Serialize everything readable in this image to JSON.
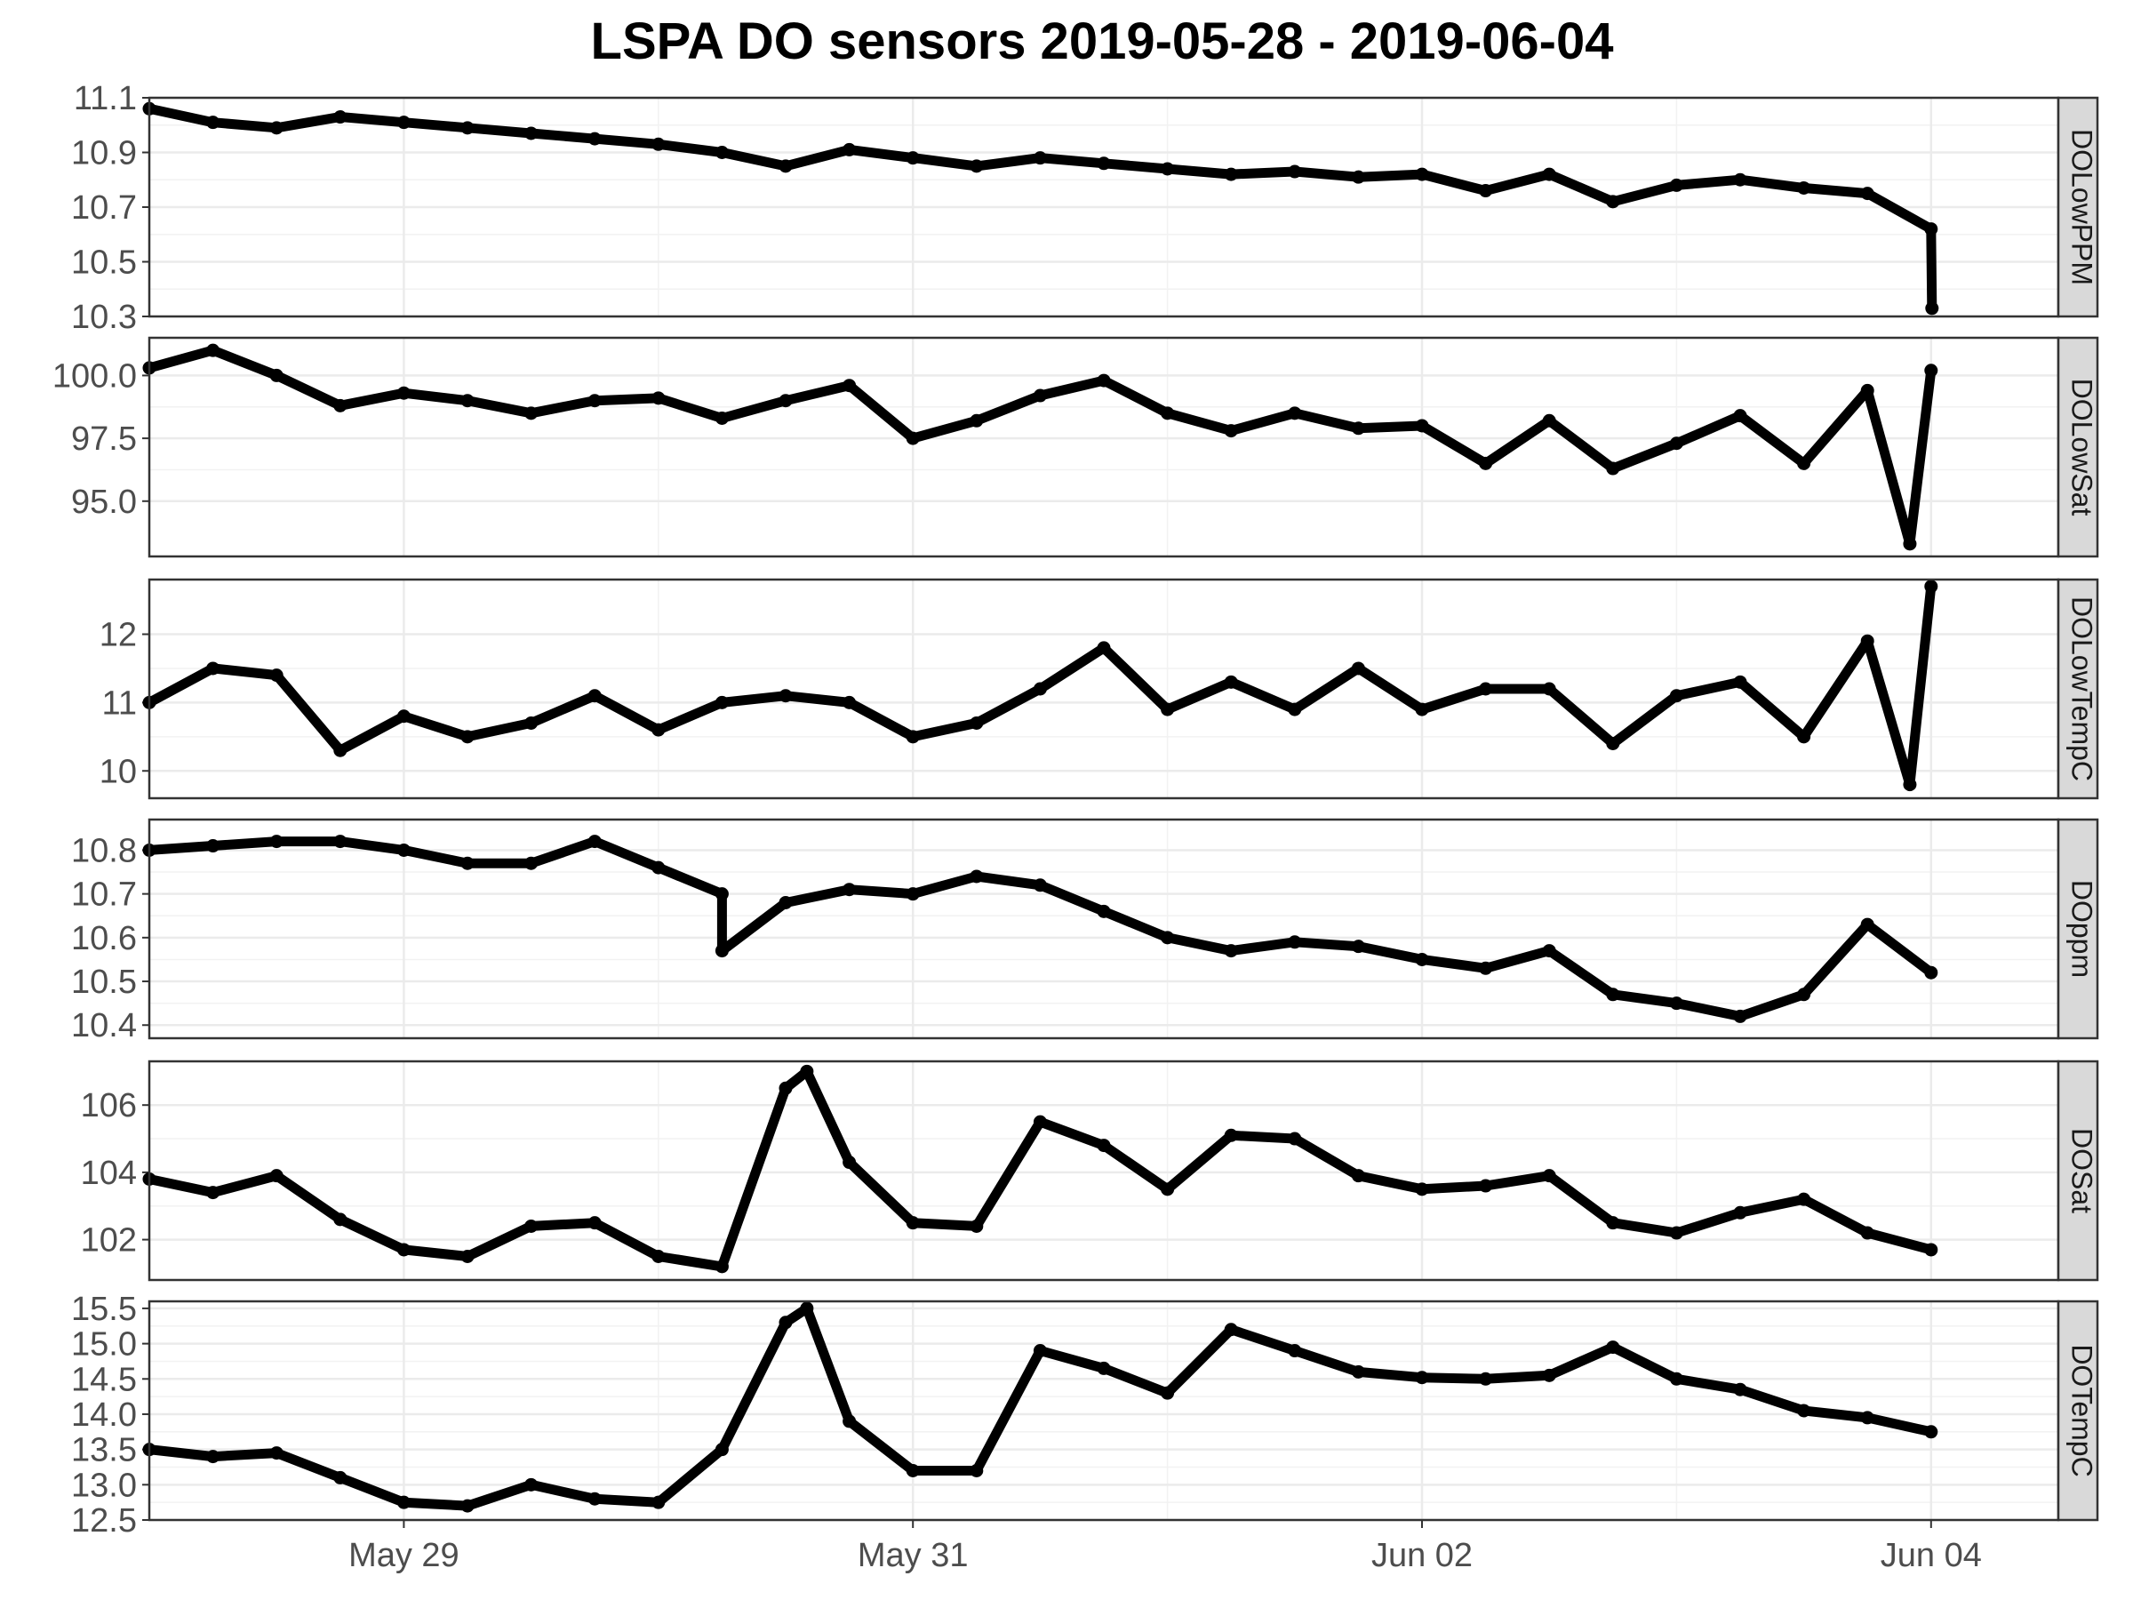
{
  "chart_data": {
    "type": "scatter",
    "title": "LSPA DO sensors 2019-05-28 - 2019-06-04",
    "xlabel": "",
    "ylabel": "",
    "grid": true,
    "point_color": "#000000",
    "strip_color": "#d9d9d9",
    "x_axis": {
      "type": "date",
      "range": [
        "2019-05-28T00:00",
        "2019-06-04T12:00"
      ],
      "ticks": [
        "2019-05-29",
        "2019-05-31",
        "2019-06-02",
        "2019-06-04"
      ],
      "tick_labels": [
        "May 29",
        "May 31",
        "Jun 02",
        "Jun 04"
      ]
    },
    "facets": [
      {
        "name": "DOLowPPM",
        "ylim": [
          10.3,
          11.1
        ],
        "yticks": [
          10.3,
          10.5,
          10.7,
          10.9,
          11.1
        ],
        "ytick_labels": [
          "10.3",
          "10.5",
          "10.7",
          "10.9",
          "11.1"
        ],
        "points": [
          [
            "2019-05-28T00:00",
            11.06
          ],
          [
            "2019-05-28T06:00",
            11.01
          ],
          [
            "2019-05-28T12:00",
            10.99
          ],
          [
            "2019-05-28T18:00",
            11.03
          ],
          [
            "2019-05-29T00:00",
            11.01
          ],
          [
            "2019-05-29T06:00",
            10.99
          ],
          [
            "2019-05-29T12:00",
            10.97
          ],
          [
            "2019-05-29T18:00",
            10.95
          ],
          [
            "2019-05-30T00:00",
            10.93
          ],
          [
            "2019-05-30T06:00",
            10.9
          ],
          [
            "2019-05-30T12:00",
            10.85
          ],
          [
            "2019-05-30T18:00",
            10.91
          ],
          [
            "2019-05-31T00:00",
            10.88
          ],
          [
            "2019-05-31T06:00",
            10.85
          ],
          [
            "2019-05-31T12:00",
            10.88
          ],
          [
            "2019-05-31T18:00",
            10.86
          ],
          [
            "2019-06-01T00:00",
            10.84
          ],
          [
            "2019-06-01T06:00",
            10.82
          ],
          [
            "2019-06-01T12:00",
            10.83
          ],
          [
            "2019-06-01T18:00",
            10.81
          ],
          [
            "2019-06-02T00:00",
            10.82
          ],
          [
            "2019-06-02T06:00",
            10.76
          ],
          [
            "2019-06-02T12:00",
            10.82
          ],
          [
            "2019-06-02T18:00",
            10.72
          ],
          [
            "2019-06-03T00:00",
            10.78
          ],
          [
            "2019-06-03T06:00",
            10.8
          ],
          [
            "2019-06-03T12:00",
            10.77
          ],
          [
            "2019-06-03T18:00",
            10.75
          ],
          [
            "2019-06-04T00:00",
            10.62
          ],
          [
            "2019-06-04T00:05",
            10.33
          ]
        ]
      },
      {
        "name": "DOLowSat",
        "ylim": [
          92.8,
          101.5
        ],
        "yticks": [
          95.0,
          97.5,
          100.0
        ],
        "ytick_labels": [
          "95.0",
          "97.5",
          "100.0"
        ],
        "points": [
          [
            "2019-05-28T00:00",
            100.3
          ],
          [
            "2019-05-28T06:00",
            101.0
          ],
          [
            "2019-05-28T12:00",
            100.0
          ],
          [
            "2019-05-28T18:00",
            98.8
          ],
          [
            "2019-05-29T00:00",
            99.3
          ],
          [
            "2019-05-29T06:00",
            99.0
          ],
          [
            "2019-05-29T12:00",
            98.5
          ],
          [
            "2019-05-29T18:00",
            99.0
          ],
          [
            "2019-05-30T00:00",
            99.1
          ],
          [
            "2019-05-30T06:00",
            98.3
          ],
          [
            "2019-05-30T12:00",
            99.0
          ],
          [
            "2019-05-30T18:00",
            99.6
          ],
          [
            "2019-05-31T00:00",
            97.5
          ],
          [
            "2019-05-31T06:00",
            98.2
          ],
          [
            "2019-05-31T12:00",
            99.2
          ],
          [
            "2019-05-31T18:00",
            99.8
          ],
          [
            "2019-06-01T00:00",
            98.5
          ],
          [
            "2019-06-01T06:00",
            97.8
          ],
          [
            "2019-06-01T12:00",
            98.5
          ],
          [
            "2019-06-01T18:00",
            97.9
          ],
          [
            "2019-06-02T00:00",
            98.0
          ],
          [
            "2019-06-02T06:00",
            96.5
          ],
          [
            "2019-06-02T12:00",
            98.2
          ],
          [
            "2019-06-02T18:00",
            96.3
          ],
          [
            "2019-06-03T00:00",
            97.3
          ],
          [
            "2019-06-03T06:00",
            98.4
          ],
          [
            "2019-06-03T12:00",
            96.5
          ],
          [
            "2019-06-03T18:00",
            99.4
          ],
          [
            "2019-06-04T00:00",
            100.2
          ],
          [
            "2019-06-03T22:00",
            93.3
          ]
        ]
      },
      {
        "name": "DOLowTempC",
        "ylim": [
          9.6,
          12.8
        ],
        "yticks": [
          10,
          11,
          12
        ],
        "ytick_labels": [
          "10",
          "11",
          "12"
        ],
        "points": [
          [
            "2019-05-28T00:00",
            11.0
          ],
          [
            "2019-05-28T06:00",
            11.5
          ],
          [
            "2019-05-28T12:00",
            11.4
          ],
          [
            "2019-05-28T18:00",
            10.3
          ],
          [
            "2019-05-29T00:00",
            10.8
          ],
          [
            "2019-05-29T06:00",
            10.5
          ],
          [
            "2019-05-29T12:00",
            10.7
          ],
          [
            "2019-05-29T18:00",
            11.1
          ],
          [
            "2019-05-30T00:00",
            10.6
          ],
          [
            "2019-05-30T06:00",
            11.0
          ],
          [
            "2019-05-30T12:00",
            11.1
          ],
          [
            "2019-05-30T18:00",
            11.0
          ],
          [
            "2019-05-31T00:00",
            10.5
          ],
          [
            "2019-05-31T06:00",
            10.7
          ],
          [
            "2019-05-31T12:00",
            11.2
          ],
          [
            "2019-05-31T18:00",
            11.8
          ],
          [
            "2019-06-01T00:00",
            10.9
          ],
          [
            "2019-06-01T06:00",
            11.3
          ],
          [
            "2019-06-01T12:00",
            10.9
          ],
          [
            "2019-06-01T18:00",
            11.5
          ],
          [
            "2019-06-02T00:00",
            10.9
          ],
          [
            "2019-06-02T06:00",
            11.2
          ],
          [
            "2019-06-02T12:00",
            11.2
          ],
          [
            "2019-06-02T18:00",
            10.4
          ],
          [
            "2019-06-03T00:00",
            11.1
          ],
          [
            "2019-06-03T06:00",
            11.3
          ],
          [
            "2019-06-03T12:00",
            10.5
          ],
          [
            "2019-06-03T18:00",
            11.9
          ],
          [
            "2019-06-03T22:00",
            9.8
          ],
          [
            "2019-06-04T00:00",
            12.7
          ]
        ]
      },
      {
        "name": "DOppm",
        "ylim": [
          10.37,
          10.87
        ],
        "yticks": [
          10.4,
          10.5,
          10.6,
          10.7,
          10.8
        ],
        "ytick_labels": [
          "10.4",
          "10.5",
          "10.6",
          "10.7",
          "10.8"
        ],
        "points": [
          [
            "2019-05-28T00:00",
            10.8
          ],
          [
            "2019-05-28T06:00",
            10.81
          ],
          [
            "2019-05-28T12:00",
            10.82
          ],
          [
            "2019-05-28T18:00",
            10.82
          ],
          [
            "2019-05-29T00:00",
            10.8
          ],
          [
            "2019-05-29T06:00",
            10.77
          ],
          [
            "2019-05-29T12:00",
            10.77
          ],
          [
            "2019-05-29T18:00",
            10.82
          ],
          [
            "2019-05-30T00:00",
            10.76
          ],
          [
            "2019-05-30T06:00",
            10.7
          ],
          [
            "2019-05-30T12:00",
            10.68
          ],
          [
            "2019-05-30T18:00",
            10.71
          ],
          [
            "2019-05-31T00:00",
            10.7
          ],
          [
            "2019-05-31T06:00",
            10.74
          ],
          [
            "2019-05-31T12:00",
            10.72
          ],
          [
            "2019-05-31T18:00",
            10.66
          ],
          [
            "2019-06-01T00:00",
            10.6
          ],
          [
            "2019-06-01T06:00",
            10.57
          ],
          [
            "2019-06-01T12:00",
            10.59
          ],
          [
            "2019-06-01T18:00",
            10.58
          ],
          [
            "2019-06-02T00:00",
            10.55
          ],
          [
            "2019-06-02T06:00",
            10.53
          ],
          [
            "2019-06-02T12:00",
            10.57
          ],
          [
            "2019-06-02T18:00",
            10.47
          ],
          [
            "2019-06-03T00:00",
            10.45
          ],
          [
            "2019-06-03T06:00",
            10.42
          ],
          [
            "2019-06-03T12:00",
            10.47
          ],
          [
            "2019-06-03T18:00",
            10.63
          ],
          [
            "2019-06-04T00:00",
            10.52
          ],
          [
            "2019-05-30T06:00",
            10.57
          ]
        ]
      },
      {
        "name": "DOSat",
        "ylim": [
          100.8,
          107.3
        ],
        "yticks": [
          102,
          104,
          106
        ],
        "ytick_labels": [
          "102",
          "104",
          "106"
        ],
        "points": [
          [
            "2019-05-28T00:00",
            103.8
          ],
          [
            "2019-05-28T06:00",
            103.4
          ],
          [
            "2019-05-28T12:00",
            103.9
          ],
          [
            "2019-05-28T18:00",
            102.6
          ],
          [
            "2019-05-29T00:00",
            101.7
          ],
          [
            "2019-05-29T06:00",
            101.5
          ],
          [
            "2019-05-29T12:00",
            102.4
          ],
          [
            "2019-05-29T18:00",
            102.5
          ],
          [
            "2019-05-30T00:00",
            101.5
          ],
          [
            "2019-05-30T06:00",
            101.2
          ],
          [
            "2019-05-30T12:00",
            106.5
          ],
          [
            "2019-05-30T18:00",
            104.3
          ],
          [
            "2019-05-31T00:00",
            102.5
          ],
          [
            "2019-05-31T06:00",
            102.4
          ],
          [
            "2019-05-31T12:00",
            105.5
          ],
          [
            "2019-05-31T18:00",
            104.8
          ],
          [
            "2019-06-01T00:00",
            103.5
          ],
          [
            "2019-06-01T06:00",
            105.1
          ],
          [
            "2019-06-01T12:00",
            105.0
          ],
          [
            "2019-06-01T18:00",
            103.9
          ],
          [
            "2019-06-02T00:00",
            103.5
          ],
          [
            "2019-06-02T06:00",
            103.6
          ],
          [
            "2019-06-02T12:00",
            103.9
          ],
          [
            "2019-06-02T18:00",
            102.5
          ],
          [
            "2019-06-03T00:00",
            102.2
          ],
          [
            "2019-06-03T06:00",
            102.8
          ],
          [
            "2019-06-03T12:00",
            103.2
          ],
          [
            "2019-06-03T18:00",
            102.2
          ],
          [
            "2019-06-04T00:00",
            101.7
          ],
          [
            "2019-05-30T14:00",
            107.0
          ]
        ]
      },
      {
        "name": "DOTempC",
        "ylim": [
          12.5,
          15.6
        ],
        "yticks": [
          12.5,
          13.0,
          13.5,
          14.0,
          14.5,
          15.0,
          15.5
        ],
        "ytick_labels": [
          "12.5",
          "13.0",
          "13.5",
          "14.0",
          "14.5",
          "15.0",
          "15.5"
        ],
        "points": [
          [
            "2019-05-28T00:00",
            13.5
          ],
          [
            "2019-05-28T06:00",
            13.4
          ],
          [
            "2019-05-28T12:00",
            13.45
          ],
          [
            "2019-05-28T18:00",
            13.1
          ],
          [
            "2019-05-29T00:00",
            12.75
          ],
          [
            "2019-05-29T06:00",
            12.7
          ],
          [
            "2019-05-29T12:00",
            13.0
          ],
          [
            "2019-05-29T18:00",
            12.8
          ],
          [
            "2019-05-30T00:00",
            12.75
          ],
          [
            "2019-05-30T06:00",
            13.5
          ],
          [
            "2019-05-30T12:00",
            15.3
          ],
          [
            "2019-05-30T18:00",
            13.9
          ],
          [
            "2019-05-31T00:00",
            13.2
          ],
          [
            "2019-05-31T06:00",
            13.2
          ],
          [
            "2019-05-31T12:00",
            14.9
          ],
          [
            "2019-05-31T18:00",
            14.65
          ],
          [
            "2019-06-01T00:00",
            14.3
          ],
          [
            "2019-06-01T06:00",
            15.2
          ],
          [
            "2019-06-01T12:00",
            14.9
          ],
          [
            "2019-06-01T18:00",
            14.6
          ],
          [
            "2019-06-02T00:00",
            14.52
          ],
          [
            "2019-06-02T06:00",
            14.5
          ],
          [
            "2019-06-02T12:00",
            14.55
          ],
          [
            "2019-06-02T18:00",
            14.95
          ],
          [
            "2019-06-03T00:00",
            14.5
          ],
          [
            "2019-06-03T06:00",
            14.35
          ],
          [
            "2019-06-03T12:00",
            14.05
          ],
          [
            "2019-06-03T18:00",
            13.95
          ],
          [
            "2019-06-04T00:00",
            13.75
          ],
          [
            "2019-05-30T14:00",
            15.5
          ]
        ]
      }
    ]
  }
}
